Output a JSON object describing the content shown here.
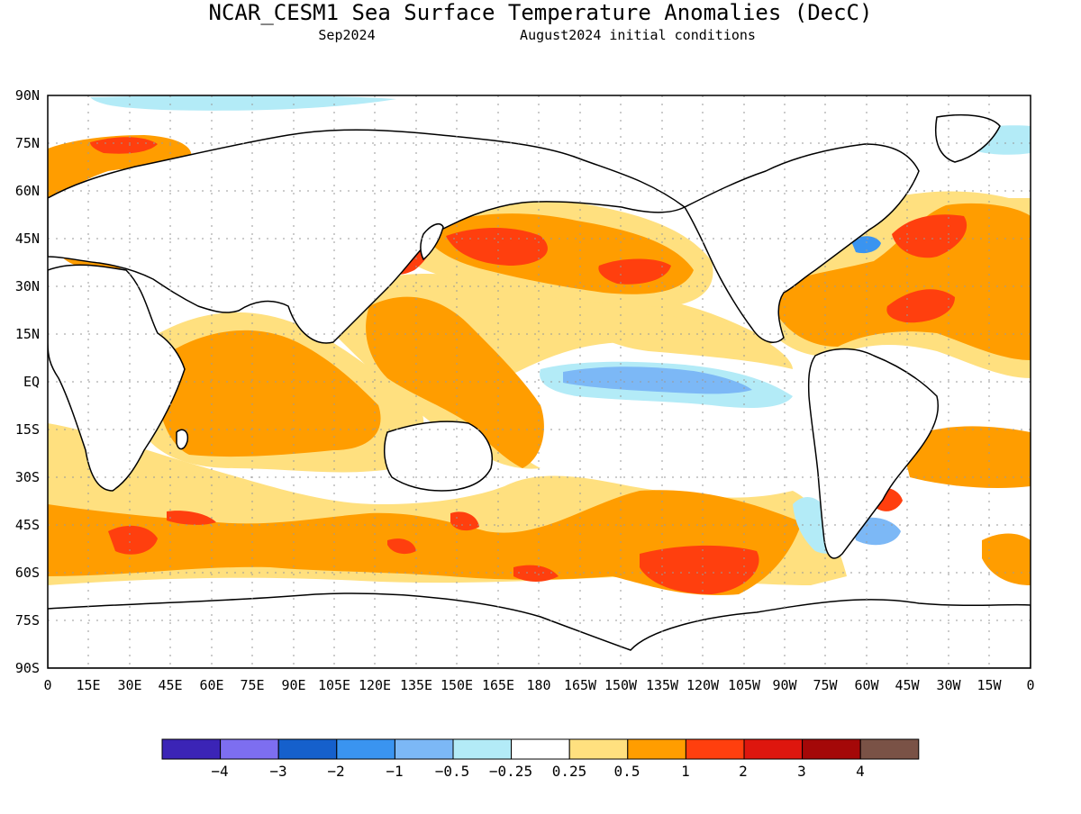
{
  "title": "NCAR_CESM1 Sea Surface Temperature Anomalies (DecC)",
  "subtitle_left": "Sep2024",
  "subtitle_right": "August2024 initial conditions",
  "lat_labels": [
    "90N",
    "75N",
    "60N",
    "45N",
    "30N",
    "15N",
    "EQ",
    "15S",
    "30S",
    "45S",
    "60S",
    "75S",
    "90S"
  ],
  "lon_labels": [
    "0",
    "15E",
    "30E",
    "45E",
    "60E",
    "75E",
    "90E",
    "105E",
    "120E",
    "135E",
    "150E",
    "165E",
    "180",
    "165W",
    "150W",
    "135W",
    "120W",
    "105W",
    "90W",
    "75W",
    "60W",
    "45W",
    "30W",
    "15W",
    "0"
  ],
  "colorbar": {
    "colors": [
      "#3b24b6",
      "#7d6ef0",
      "#1560cc",
      "#3a94f0",
      "#7cb8f6",
      "#b3ebf7",
      "#ffffff",
      "#ffe07f",
      "#ff9d00",
      "#ff3f0e",
      "#de160e",
      "#a40808",
      "#7a5246"
    ],
    "labels": [
      "−4",
      "−3",
      "−2",
      "−1",
      "−0.5",
      "−0.25",
      "0.25",
      "0.5",
      "1",
      "2",
      "3",
      "4"
    ]
  },
  "colors": {
    "ocean": "#ffffff",
    "coast": "#000000",
    "grid": "#9a9a9a"
  }
}
